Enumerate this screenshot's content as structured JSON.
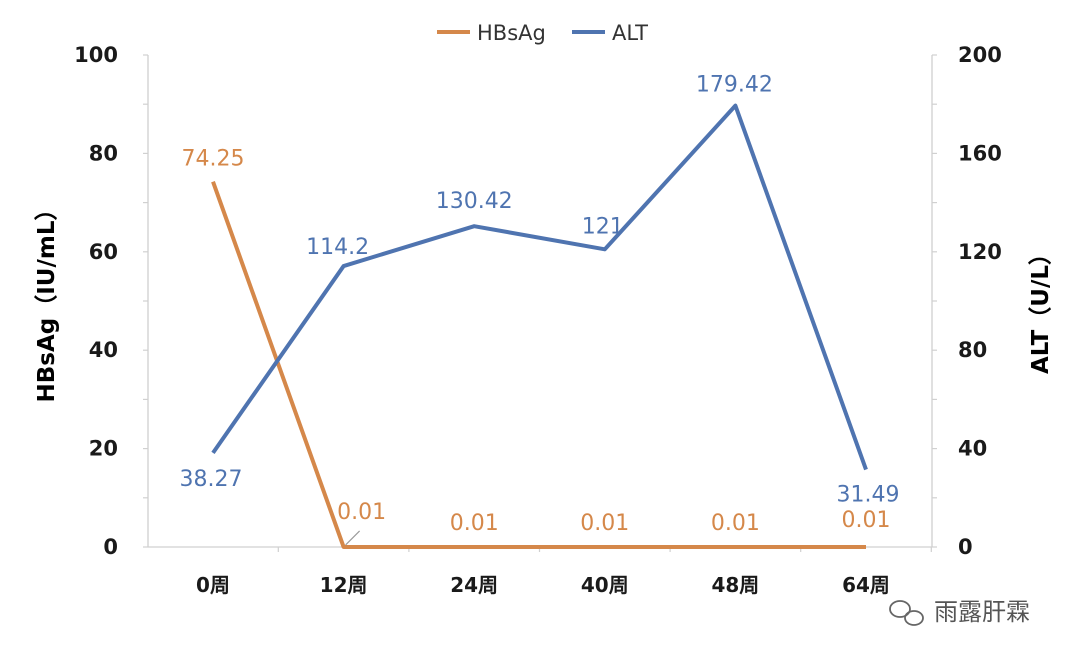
{
  "chart_data": {
    "type": "line",
    "categories": [
      "0周",
      "12周",
      "24周",
      "40周",
      "48周",
      "64周"
    ],
    "series": [
      {
        "name": "HBsAg",
        "axis": "left",
        "color": "#D5884A",
        "values": [
          74.25,
          0.01,
          0.01,
          0.01,
          0.01,
          0.01
        ],
        "labels": [
          "74.25",
          "0.01",
          "0.01",
          "0.01",
          "0.01",
          "0.01"
        ]
      },
      {
        "name": "ALT",
        "axis": "right",
        "color": "#4F74B0",
        "values": [
          38.27,
          114.2,
          130.42,
          121,
          179.42,
          31.49
        ],
        "labels": [
          "38.27",
          "114.2",
          "130.42",
          "121",
          "179.42",
          "31.49"
        ]
      }
    ],
    "ylabel": "HBsAg（IU/mL）",
    "y2label": "ALT（U/L）",
    "ylim": [
      0,
      100
    ],
    "y2lim": [
      0,
      200
    ],
    "yticks": [
      "0",
      "20",
      "40",
      "60",
      "80",
      "100"
    ],
    "y2ticks": [
      "0",
      "40",
      "80",
      "120",
      "160",
      "200"
    ],
    "grid": false,
    "legend_position": "top-center"
  },
  "watermark": "雨露肝霖"
}
